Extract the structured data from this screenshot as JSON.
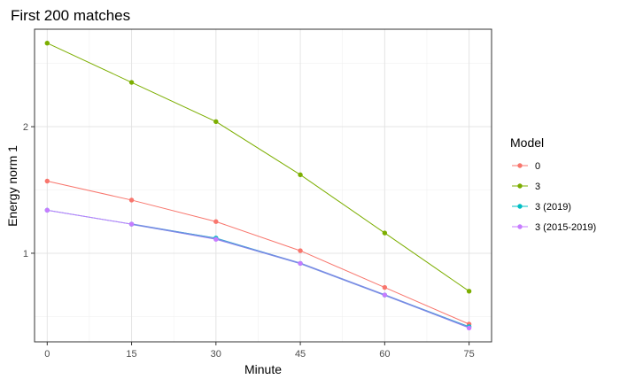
{
  "chart_data": {
    "type": "line",
    "title": "First 200 matches",
    "xlabel": "Minute",
    "ylabel": "Energy norm 1",
    "x": [
      0,
      15,
      30,
      45,
      60,
      75
    ],
    "xticks": [
      "0",
      "15",
      "30",
      "45",
      "60",
      "75"
    ],
    "yticks": [
      1,
      2
    ],
    "ytick_labels": [
      "1",
      "2"
    ],
    "xlim": [
      -2.25,
      79.0
    ],
    "ylim": [
      0.3,
      2.77
    ],
    "grid": true,
    "legend": {
      "title": "Model",
      "position": "right"
    },
    "series": [
      {
        "name": "0",
        "color": "#F8766D",
        "values": [
          1.57,
          1.42,
          1.25,
          1.02,
          0.73,
          0.44
        ]
      },
      {
        "name": "3",
        "color": "#7CAE00",
        "values": [
          2.66,
          2.35,
          2.04,
          1.62,
          1.16,
          0.7
        ]
      },
      {
        "name": "3 (2019)",
        "color": "#00BFC4",
        "values": [
          1.34,
          1.23,
          1.12,
          0.92,
          0.67,
          0.42
        ]
      },
      {
        "name": "3 (2015-2019)",
        "color": "#C77CFF",
        "values": [
          1.34,
          1.23,
          1.11,
          0.92,
          0.67,
          0.41
        ]
      }
    ],
    "smooth_overlay": {
      "color": "#6E8BE0",
      "x": [
        15,
        30,
        45,
        60,
        75
      ],
      "values": [
        1.23,
        1.115,
        0.92,
        0.67,
        0.415
      ]
    }
  }
}
